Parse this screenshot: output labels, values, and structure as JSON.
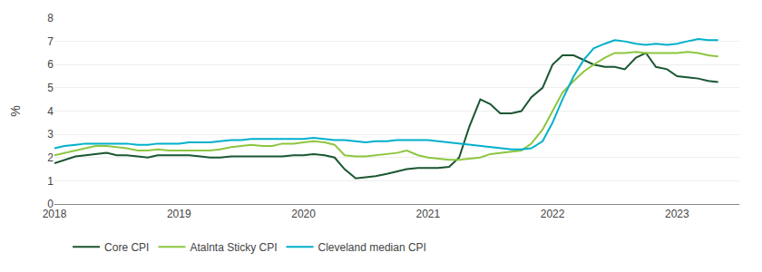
{
  "chart_data": {
    "type": "line",
    "ylabel": "%",
    "x": [
      2018.0,
      2018.08,
      2018.17,
      2018.25,
      2018.33,
      2018.42,
      2018.5,
      2018.58,
      2018.67,
      2018.75,
      2018.83,
      2018.92,
      2019.0,
      2019.08,
      2019.17,
      2019.25,
      2019.33,
      2019.42,
      2019.5,
      2019.58,
      2019.67,
      2019.75,
      2019.83,
      2019.92,
      2020.0,
      2020.08,
      2020.17,
      2020.25,
      2020.33,
      2020.42,
      2020.5,
      2020.58,
      2020.67,
      2020.75,
      2020.83,
      2020.92,
      2021.0,
      2021.08,
      2021.17,
      2021.25,
      2021.33,
      2021.42,
      2021.5,
      2021.58,
      2021.67,
      2021.75,
      2021.83,
      2021.92,
      2022.0,
      2022.08,
      2022.17,
      2022.25,
      2022.33,
      2022.42,
      2022.5,
      2022.58,
      2022.67,
      2022.75,
      2022.83,
      2022.92,
      2023.0,
      2023.08,
      2023.17,
      2023.25,
      2023.33
    ],
    "series": [
      {
        "name": "Core CPI",
        "color": "#1a5632",
        "values": [
          1.75,
          1.9,
          2.05,
          2.1,
          2.15,
          2.2,
          2.1,
          2.1,
          2.05,
          2.0,
          2.1,
          2.1,
          2.1,
          2.1,
          2.05,
          2.0,
          2.0,
          2.05,
          2.05,
          2.05,
          2.05,
          2.05,
          2.05,
          2.1,
          2.1,
          2.15,
          2.1,
          2.0,
          1.5,
          1.1,
          1.15,
          1.2,
          1.3,
          1.4,
          1.5,
          1.55,
          1.55,
          1.55,
          1.6,
          2.0,
          3.3,
          4.5,
          4.3,
          3.9,
          3.9,
          4.0,
          4.6,
          5.0,
          6.0,
          6.4,
          6.4,
          6.2,
          6.0,
          5.9,
          5.9,
          5.8,
          6.3,
          6.5,
          5.9,
          5.8,
          5.5,
          5.45,
          5.4,
          5.3,
          5.25
        ]
      },
      {
        "name": "Atalnta Sticky CPI",
        "color": "#8dc63f",
        "values": [
          2.1,
          2.2,
          2.3,
          2.4,
          2.5,
          2.5,
          2.45,
          2.4,
          2.3,
          2.3,
          2.35,
          2.3,
          2.3,
          2.3,
          2.3,
          2.3,
          2.35,
          2.45,
          2.5,
          2.55,
          2.5,
          2.5,
          2.6,
          2.6,
          2.65,
          2.7,
          2.65,
          2.55,
          2.1,
          2.05,
          2.05,
          2.1,
          2.15,
          2.2,
          2.3,
          2.1,
          2.0,
          1.95,
          1.9,
          1.9,
          1.95,
          2.0,
          2.15,
          2.2,
          2.25,
          2.3,
          2.6,
          3.2,
          4.0,
          4.8,
          5.3,
          5.7,
          6.0,
          6.3,
          6.5,
          6.5,
          6.55,
          6.5,
          6.5,
          6.5,
          6.5,
          6.55,
          6.5,
          6.4,
          6.35
        ]
      },
      {
        "name": "Cleveland median CPI",
        "color": "#00b0ca",
        "values": [
          2.4,
          2.5,
          2.55,
          2.6,
          2.6,
          2.6,
          2.6,
          2.6,
          2.55,
          2.55,
          2.6,
          2.6,
          2.6,
          2.65,
          2.65,
          2.65,
          2.7,
          2.75,
          2.75,
          2.8,
          2.8,
          2.8,
          2.8,
          2.8,
          2.8,
          2.85,
          2.8,
          2.75,
          2.75,
          2.7,
          2.65,
          2.7,
          2.7,
          2.75,
          2.75,
          2.75,
          2.75,
          2.7,
          2.65,
          2.6,
          2.55,
          2.5,
          2.45,
          2.4,
          2.35,
          2.35,
          2.4,
          2.7,
          3.5,
          4.5,
          5.5,
          6.2,
          6.7,
          6.9,
          7.05,
          7.0,
          6.9,
          6.85,
          6.9,
          6.85,
          6.9,
          7.0,
          7.1,
          7.05,
          7.05
        ]
      }
    ],
    "xlim": [
      2018.0,
      2023.5
    ],
    "xticks": [
      2018,
      2019,
      2020,
      2021,
      2022,
      2023
    ],
    "ylim": [
      0,
      8
    ],
    "yticks": [
      0,
      1,
      2,
      3,
      4,
      5,
      6,
      7,
      8
    ],
    "grid": "y",
    "legend": "bottom"
  }
}
